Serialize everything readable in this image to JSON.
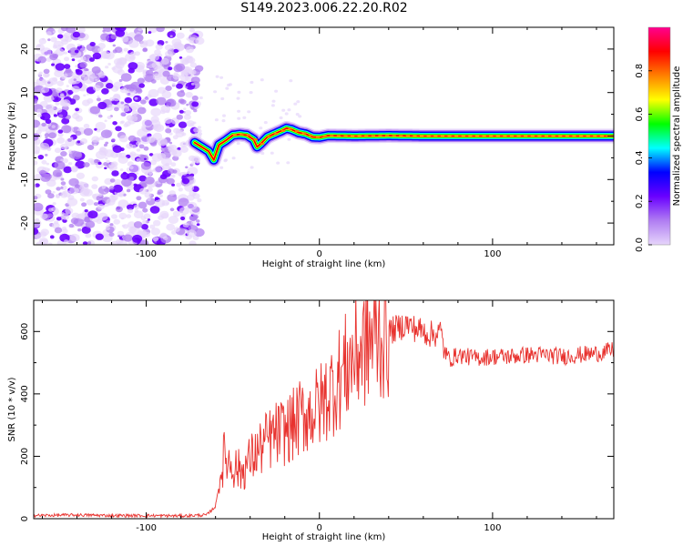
{
  "title": "S149.2023.006.22.20.R02",
  "colors": {
    "snr_line": "#e8322e",
    "axis": "#000000",
    "colormap": [
      "#ffffff",
      "#e6d5fb",
      "#b07df2",
      "#6a00ff",
      "#0000ff",
      "#00ffff",
      "#00ff00",
      "#ffff00",
      "#ff8000",
      "#ff0000",
      "#ff0090"
    ]
  },
  "chart_data": [
    {
      "type": "heatmap",
      "title": "",
      "xlabel": "Height of straight line (km)",
      "ylabel": "Frequency (Hz)",
      "xlim": [
        -165,
        170
      ],
      "ylim": [
        -25,
        25
      ],
      "xticks": [
        -100,
        0,
        100
      ],
      "yticks": [
        -20,
        -10,
        0,
        10,
        20
      ],
      "grid": false,
      "colorbar": {
        "label": "Normalized spectral amplitude",
        "range": [
          0,
          1
        ],
        "ticks": [
          "0.0",
          "0.2",
          "0.4",
          "0.6",
          "0.8"
        ]
      },
      "noise_region_x": [
        -165,
        -72
      ],
      "tone_trace": {
        "x": [
          -72,
          -68,
          -64,
          -61,
          -58,
          -54,
          -50,
          -46,
          -42,
          -38,
          -36,
          -34,
          -30,
          -26,
          -22,
          -19,
          -16,
          -12,
          -8,
          -4,
          0,
          5,
          20,
          40,
          60,
          100,
          140,
          170
        ],
        "y": [
          -1.5,
          -2.5,
          -3.5,
          -5.5,
          -2,
          -1,
          0.2,
          0.4,
          0.2,
          -0.8,
          -2.5,
          -1.8,
          -0.2,
          0.5,
          1.2,
          1.8,
          1.5,
          0.8,
          0.5,
          -0.2,
          -0.3,
          0.1,
          0.0,
          0.1,
          0.0,
          0.0,
          0.0,
          0.0
        ]
      }
    },
    {
      "type": "line",
      "title": "",
      "xlabel": "Height of straight line (km)",
      "ylabel": "SNR (10 * v/v)",
      "xlim": [
        -165,
        170
      ],
      "ylim": [
        0,
        700
      ],
      "xticks": [
        -100,
        0,
        100
      ],
      "yticks": [
        0,
        200,
        400,
        600
      ],
      "grid": false,
      "series": [
        {
          "x": [
            -165,
            -140,
            -120,
            -100,
            -80,
            -65,
            -60,
            -57,
            -55,
            -50,
            -45,
            -40,
            -35,
            -30,
            -25,
            -20,
            -15,
            -10,
            -5,
            0,
            5,
            10,
            15,
            20,
            25,
            30,
            35,
            40,
            45,
            50,
            55,
            60,
            65,
            70,
            72,
            75,
            80,
            90,
            100,
            110,
            120,
            130,
            140,
            150,
            160,
            170
          ],
          "values": [
            10,
            12,
            10,
            10,
            9,
            12,
            40,
            140,
            200,
            170,
            150,
            190,
            220,
            250,
            270,
            280,
            300,
            330,
            340,
            360,
            400,
            440,
            480,
            520,
            550,
            575,
            590,
            600,
            610,
            625,
            610,
            600,
            590,
            600,
            540,
            510,
            525,
            515,
            520,
            520,
            525,
            525,
            520,
            525,
            530,
            540
          ]
        }
      ]
    }
  ]
}
